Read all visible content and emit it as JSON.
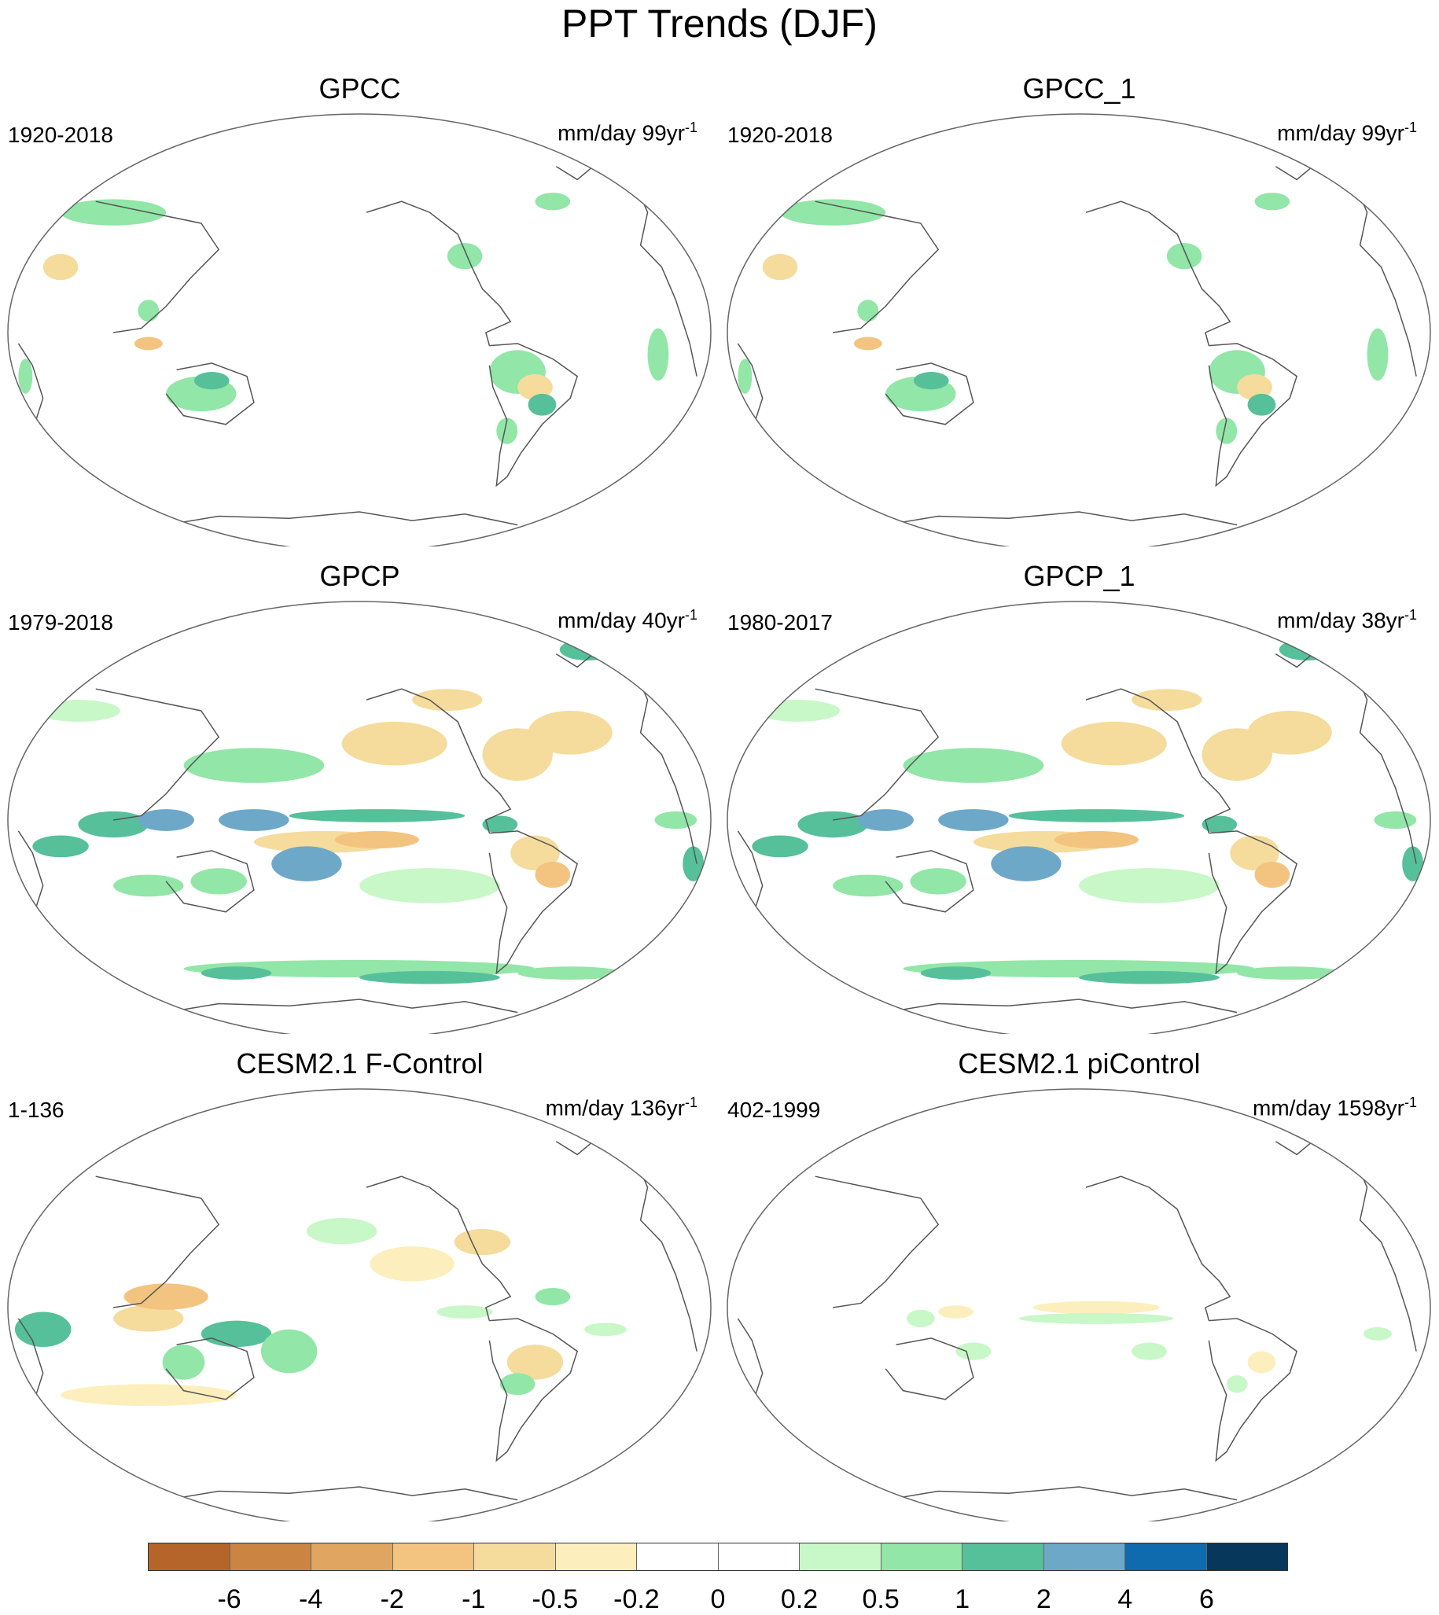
{
  "title": "PPT Trends (DJF)",
  "panels": [
    {
      "name": "GPCC",
      "period": "1920-2018",
      "units": "mm/day 99yr",
      "exp": "-1",
      "pattern": "land-only"
    },
    {
      "name": "GPCC_1",
      "period": "1920-2018",
      "units": "mm/day 99yr",
      "exp": "-1",
      "pattern": "land-only"
    },
    {
      "name": "GPCP",
      "period": "1979-2018",
      "units": "mm/day 40yr",
      "exp": "-1",
      "pattern": "global-strong"
    },
    {
      "name": "GPCP_1",
      "period": "1980-2017",
      "units": "mm/day 38yr",
      "exp": "-1",
      "pattern": "global-strong"
    },
    {
      "name": "CESM2.1 F-Control",
      "period": "1-136",
      "units": "mm/day 136yr",
      "exp": "-1",
      "pattern": "global-moderate"
    },
    {
      "name": "CESM2.1 piControl",
      "period": "402-1999",
      "units": "mm/day 1598yr",
      "exp": "-1",
      "pattern": "global-weak"
    }
  ],
  "colorbar": {
    "colors": [
      "#b5642a",
      "#cc8443",
      "#e0a561",
      "#f2c47f",
      "#f5dc9c",
      "#fcefbd",
      "#ffffff",
      "#ffffff",
      "#c8f7c8",
      "#92e6a8",
      "#56c09a",
      "#6ea8c8",
      "#0f6aae",
      "#07375a"
    ],
    "labels": [
      "-6",
      "-4",
      "-2",
      "-1",
      "-0.5",
      "-0.2",
      "0",
      "0.2",
      "0.5",
      "1",
      "2",
      "4",
      "6"
    ]
  }
}
